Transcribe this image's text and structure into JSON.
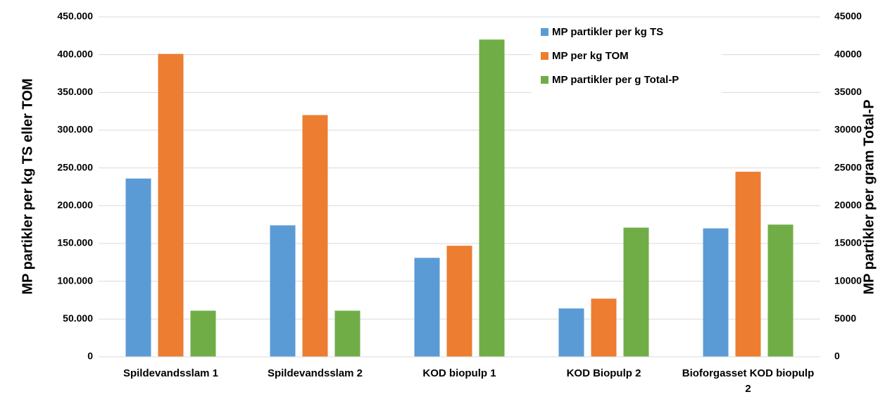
{
  "chart_data": {
    "type": "bar",
    "y_label": "MP partikler per kg TS eller TOM",
    "y2_label": "MP partikler per gram Total-P",
    "categories": [
      "Spildevandsslam 1",
      "Spildevandsslam 2",
      "KOD biopulp 1",
      "KOD Biopulp 2",
      "Bioforgasset KOD biopulp 2"
    ],
    "series": [
      {
        "name": "MP partikler per kg TS",
        "color": "#5b9bd5",
        "values": [
          236000,
          174000,
          131000,
          64000,
          170000
        ]
      },
      {
        "name": "MP per kg TOM",
        "color": "#ed7d31",
        "values": [
          401000,
          320000,
          147000,
          77000,
          245000
        ]
      },
      {
        "name": "MP partikler per g Total-P",
        "color": "#70ad47",
        "axis": "y2",
        "values": [
          6100,
          6100,
          42000,
          17100,
          17500
        ]
      }
    ],
    "ylim": [
      0,
      450000
    ],
    "yticks": [
      0,
      {
        "value": 50000,
        "label": "50.000"
      },
      {
        "value": 100000,
        "label": "100.000"
      },
      {
        "value": 150000,
        "label": "150.000"
      },
      {
        "value": 200000,
        "label": "200.000"
      },
      {
        "value": 250000,
        "label": "250.000"
      },
      {
        "value": 300000,
        "label": "300.000"
      },
      {
        "value": 350000,
        "label": "350.000"
      },
      {
        "value": 400000,
        "label": "400.000"
      },
      {
        "value": 450000,
        "label": "450.000"
      }
    ],
    "y2lim": [
      0,
      45000
    ],
    "y2ticks": [
      0,
      5000,
      10000,
      15000,
      20000,
      25000,
      30000,
      35000,
      40000,
      45000
    ],
    "grid": true
  }
}
